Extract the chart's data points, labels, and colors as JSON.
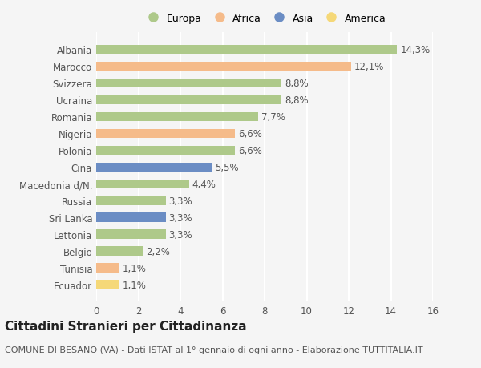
{
  "categories": [
    "Albania",
    "Marocco",
    "Svizzera",
    "Ucraina",
    "Romania",
    "Nigeria",
    "Polonia",
    "Cina",
    "Macedonia d/N.",
    "Russia",
    "Sri Lanka",
    "Lettonia",
    "Belgio",
    "Tunisia",
    "Ecuador"
  ],
  "values": [
    14.3,
    12.1,
    8.8,
    8.8,
    7.7,
    6.6,
    6.6,
    5.5,
    4.4,
    3.3,
    3.3,
    3.3,
    2.2,
    1.1,
    1.1
  ],
  "labels": [
    "14,3%",
    "12,1%",
    "8,8%",
    "8,8%",
    "7,7%",
    "6,6%",
    "6,6%",
    "5,5%",
    "4,4%",
    "3,3%",
    "3,3%",
    "3,3%",
    "2,2%",
    "1,1%",
    "1,1%"
  ],
  "continents": [
    "Europa",
    "Africa",
    "Europa",
    "Europa",
    "Europa",
    "Africa",
    "Europa",
    "Asia",
    "Europa",
    "Europa",
    "Asia",
    "Europa",
    "Europa",
    "Africa",
    "America"
  ],
  "continent_colors": {
    "Europa": "#aec98a",
    "Africa": "#f5bb8a",
    "Asia": "#6b8dc4",
    "America": "#f5d878"
  },
  "legend_order": [
    "Europa",
    "Africa",
    "Asia",
    "America"
  ],
  "xlim": [
    0,
    16
  ],
  "xticks": [
    0,
    2,
    4,
    6,
    8,
    10,
    12,
    14,
    16
  ],
  "title": "Cittadini Stranieri per Cittadinanza",
  "subtitle": "COMUNE DI BESANO (VA) - Dati ISTAT al 1° gennaio di ogni anno - Elaborazione TUTTITALIA.IT",
  "background_color": "#f5f5f5",
  "bar_height": 0.55,
  "grid_color": "#ffffff",
  "label_fontsize": 8.5,
  "title_fontsize": 11,
  "subtitle_fontsize": 8
}
